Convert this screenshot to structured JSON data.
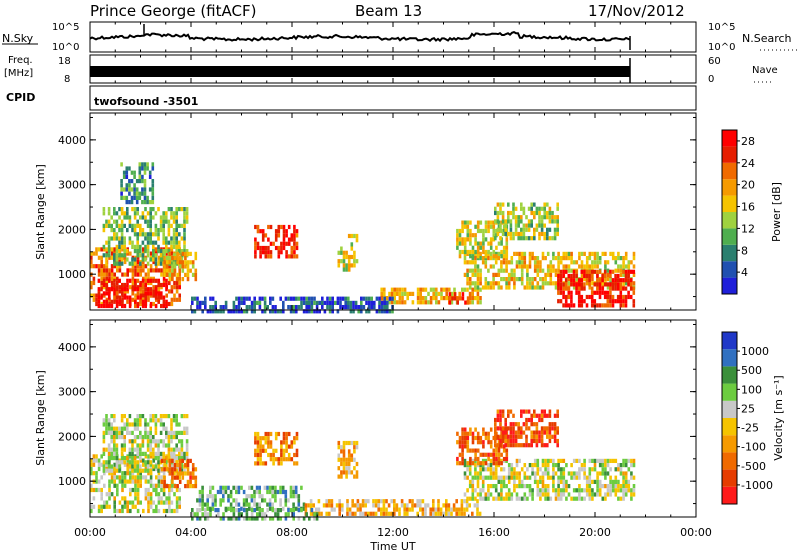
{
  "header": {
    "station": "Prince George (fitACF)",
    "beam": "Beam 13",
    "date": "17/Nov/2012"
  },
  "nsky_panel": {
    "left_label": "N.Sky",
    "left_ticks": [
      "10^5",
      "10^0"
    ],
    "right_ticks": [
      "10^5",
      "10^0"
    ],
    "right_label": "N.Search"
  },
  "freq_panel": {
    "left_label_1": "Freq.",
    "left_label_2": "[MHz]",
    "left_ticks": [
      "18",
      "8"
    ],
    "right_ticks": [
      "60",
      "0"
    ],
    "right_label": "Nave"
  },
  "cpid": {
    "label": "CPID",
    "mode": "twofsound -3501"
  },
  "colors": {
    "power_scale": [
      "#1f1fd9",
      "#2050b0",
      "#2a7f6f",
      "#4fae4f",
      "#9fd23f",
      "#f5c400",
      "#f59a00",
      "#f06a00",
      "#e61e00",
      "#ff0000"
    ],
    "velocity_scale": [
      "#2038c8",
      "#3070c0",
      "#3a8f3a",
      "#6ccc40",
      "#c8c8c8",
      "#f5c400",
      "#f59a00",
      "#f06a00",
      "#e63c00",
      "#ff1a1a"
    ]
  },
  "chart_data": [
    {
      "type": "heatmap",
      "name": "power",
      "ylabel": "Slant Range [km]",
      "yticks": [
        "1000",
        "2000",
        "3000",
        "4000"
      ],
      "ylim": [
        200,
        4600
      ],
      "xlim_hours": [
        0,
        24
      ],
      "colorbar_label": "Power [dB]",
      "colorbar_ticks": [
        "4",
        "8",
        "12",
        "16",
        "20",
        "24",
        "28"
      ],
      "clim": [
        0,
        30
      ],
      "regions": [
        {
          "t0": 0.0,
          "t1": 3.6,
          "r0": 300,
          "r1": 1600,
          "level": 0.75
        },
        {
          "t0": 0.3,
          "t1": 3.0,
          "r0": 300,
          "r1": 900,
          "level": 0.95
        },
        {
          "t0": 0.5,
          "t1": 3.8,
          "r0": 1200,
          "r1": 2500,
          "level": 0.4
        },
        {
          "t0": 2.8,
          "t1": 4.2,
          "r0": 900,
          "r1": 1500,
          "level": 0.6
        },
        {
          "t0": 1.2,
          "t1": 2.5,
          "r0": 2600,
          "r1": 3500,
          "level": 0.25
        },
        {
          "t0": 6.5,
          "t1": 8.2,
          "r0": 1400,
          "r1": 2100,
          "level": 0.85
        },
        {
          "t0": 9.8,
          "t1": 10.6,
          "r0": 1100,
          "r1": 1900,
          "level": 0.5
        },
        {
          "t0": 11.5,
          "t1": 15.5,
          "r0": 350,
          "r1": 700,
          "level": 0.6
        },
        {
          "t0": 14.2,
          "t1": 15.0,
          "r0": 400,
          "r1": 600,
          "level": 0.9
        },
        {
          "t0": 14.8,
          "t1": 21.5,
          "r0": 700,
          "r1": 1500,
          "level": 0.55
        },
        {
          "t0": 18.5,
          "t1": 21.5,
          "r0": 300,
          "r1": 1100,
          "level": 0.9
        },
        {
          "t0": 14.5,
          "t1": 16.5,
          "r0": 1400,
          "r1": 2200,
          "level": 0.5
        },
        {
          "t0": 16.0,
          "t1": 18.5,
          "r0": 1800,
          "r1": 2600,
          "level": 0.45
        },
        {
          "t0": 4.0,
          "t1": 12.0,
          "r0": 200,
          "r1": 500,
          "level": 0.15
        }
      ]
    },
    {
      "type": "heatmap",
      "name": "velocity",
      "ylabel": "Slant Range [km]",
      "yticks": [
        "1000",
        "2000",
        "3000",
        "4000"
      ],
      "ylim": [
        200,
        4600
      ],
      "xlim_hours": [
        0,
        24
      ],
      "colorbar_label": "Velocity [m s⁻¹]",
      "colorbar_ticks": [
        "1000",
        "500",
        "100",
        "25",
        "-25",
        "-100",
        "-500",
        "-1000"
      ],
      "clim": [
        -1000,
        1000
      ],
      "regions": [
        {
          "t0": 0.0,
          "t1": 3.6,
          "r0": 300,
          "r1": 1600,
          "level": 0.45
        },
        {
          "t0": 0.5,
          "t1": 3.8,
          "r0": 1200,
          "r1": 2500,
          "level": 0.45
        },
        {
          "t0": 2.8,
          "t1": 4.2,
          "r0": 900,
          "r1": 1500,
          "level": 0.75
        },
        {
          "t0": 4.2,
          "t1": 8.5,
          "r0": 400,
          "r1": 900,
          "level": 0.3
        },
        {
          "t0": 6.5,
          "t1": 8.2,
          "r0": 1400,
          "r1": 2100,
          "level": 0.7
        },
        {
          "t0": 9.8,
          "t1": 10.6,
          "r0": 1100,
          "r1": 1900,
          "level": 0.6
        },
        {
          "t0": 8.5,
          "t1": 15.5,
          "r0": 250,
          "r1": 600,
          "level": 0.6
        },
        {
          "t0": 14.8,
          "t1": 21.5,
          "r0": 600,
          "r1": 1500,
          "level": 0.45
        },
        {
          "t0": 14.5,
          "t1": 16.5,
          "r0": 1400,
          "r1": 2200,
          "level": 0.78
        },
        {
          "t0": 16.0,
          "t1": 18.5,
          "r0": 1800,
          "r1": 2600,
          "level": 0.85
        },
        {
          "t0": 4.0,
          "t1": 9.0,
          "r0": 200,
          "r1": 400,
          "level": 0.3
        }
      ]
    }
  ],
  "xaxis": {
    "ticks": [
      "00:00",
      "04:00",
      "08:00",
      "12:00",
      "16:00",
      "20:00",
      "00:00"
    ],
    "label": "Time UT"
  }
}
